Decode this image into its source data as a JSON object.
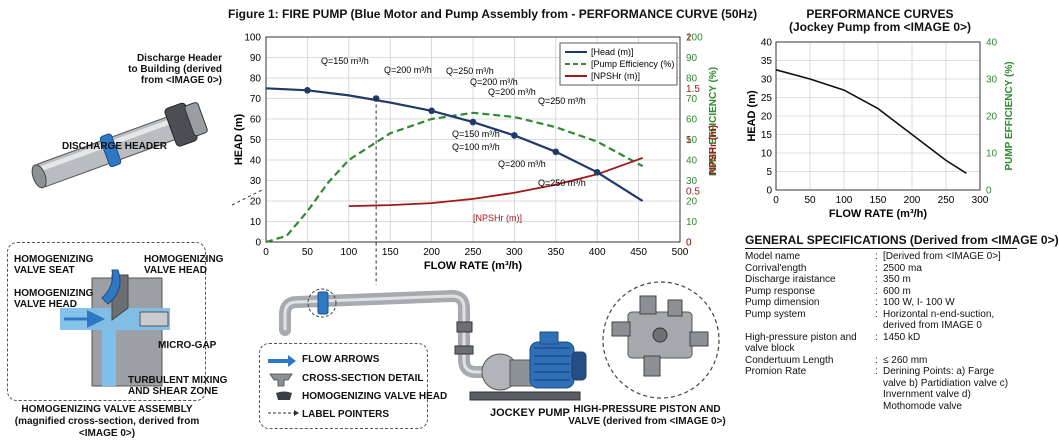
{
  "main_title": "Figure 1: FIRE PUMP (Blue Motor and Pump Assembly from - PERFORMANCE CURVE (50Hz)",
  "right_title_1": "PERFORMANCE CURVES",
  "right_title_2": "(Jockey Pump from <IMAGE 0>)",
  "discharge_note": [
    "Discharge Header",
    "to Building (derived",
    "from <IMAGE 0>)"
  ],
  "discharge_header_label": "DISCHARGE HEADER",
  "hv_labels": {
    "seat": [
      "HOMOGENIZING",
      "VALVE SEAT"
    ],
    "head_top": [
      "HOMOGENIZING",
      "VALVE HEAD"
    ],
    "head_left": [
      "HOMOGENIZING",
      "VALVE HEAD"
    ],
    "microgap": "MICRO-GAP",
    "turbulent": [
      "TURBULENT MIXING",
      "AND SHEAR ZONE"
    ]
  },
  "hv_caption_1": "HOMOGENIZING VALVE ASSEMBLY",
  "hv_caption_2": "(magnified cross-section, derived from <IMAGE 0>)",
  "legend_items": [
    "FLOW ARROWS",
    "CROSS-SECTION DETAIL",
    "HOMOGENIZING VALVE HEAD",
    "LABEL POINTERS"
  ],
  "jockey_label": "JOCKEY PUMP",
  "piston_caption_1": "HIGH-PRESSURE PISTON AND",
  "piston_caption_2": "VALVE (derived from <IMAGE 0>)",
  "specs_title": "GENERAL SPECIFICATIONS (Derived from <IMAGE 0>)",
  "specs": [
    {
      "k": "Model name",
      "v": "[Derived from <IMAGE 0>]"
    },
    {
      "k": "Corrival'ength",
      "v": "2500 ma"
    },
    {
      "k": "Discharge iraistance",
      "v": "350 m"
    },
    {
      "k": "Pump response",
      "v": "600 m"
    },
    {
      "k": "Pump dimension",
      "v": "100 W, I- 100 W"
    },
    {
      "k": "Pump system",
      "v": "Horizontal n-end-suction, derived from IMAGE 0"
    },
    {
      "k": "High-pressure piston and valve block",
      "v": "1450 kD"
    },
    {
      "k": "Condertuum Length",
      "v": "≤ 260 mm"
    },
    {
      "k": "Promion Rate",
      "v": "Derining Points: a) Farge valve b) Partidiation valve c) Invernment valve d) Mothomode valve"
    }
  ],
  "chart_data": [
    {
      "type": "line",
      "xlabel": "FLOW RATE (m³/h)",
      "ylabel": "HEAD (m)",
      "y2label": "PUMP EFFICIENCY (%)",
      "y3label": "NPSHr (m)",
      "xlim": [
        0,
        500
      ],
      "ylim": [
        0,
        100
      ],
      "y2lim": [
        0,
        100
      ],
      "y3lim": [
        0,
        2
      ],
      "xticks": [
        0,
        50,
        100,
        150,
        200,
        250,
        300,
        350,
        400,
        450,
        500
      ],
      "yticks": [
        0,
        10,
        20,
        30,
        40,
        50,
        60,
        70,
        80,
        90,
        100
      ],
      "y3ticks": [
        "0",
        "0.5",
        "1",
        "1.5",
        "2"
      ],
      "legend": [
        "[Head (m)]",
        "[Pump Efficiency (%)",
        "[NPSHr (m)]"
      ],
      "series": [
        {
          "name": "[Head (m)]",
          "color": "#1f3a68",
          "x": [
            0,
            50,
            100,
            150,
            200,
            250,
            300,
            350,
            400,
            455
          ],
          "y": [
            75,
            74,
            71.5,
            68,
            64,
            58.5,
            52,
            44,
            34,
            20
          ]
        },
        {
          "name": "[Pump Efficiency (%)",
          "color": "#2e8b2e",
          "dash": true,
          "x": [
            0,
            25,
            50,
            75,
            100,
            150,
            200,
            250,
            300,
            350,
            400,
            455
          ],
          "y": [
            0,
            3,
            15,
            29,
            40,
            53,
            60,
            63,
            61,
            56,
            49,
            37
          ]
        },
        {
          "name": "[NPSHr (m)]",
          "color": "#a01818",
          "x": [
            100,
            150,
            200,
            250,
            300,
            350,
            400,
            455
          ],
          "y": [
            0.35,
            0.36,
            0.38,
            0.42,
            0.48,
            0.56,
            0.66,
            0.82
          ]
        }
      ],
      "annotations": [
        "Q=150 m³/h",
        "Q=200 m³/h",
        "Q=250 m³/h",
        "Q=200 m³/h",
        "Q=200 m³/h",
        "Q=250 m³/h",
        "Q=150 m³/h",
        "Q=100 m³/h",
        "Q=200 m³/h",
        "Q=250 m³/h",
        "[NPSHr (m)]"
      ]
    },
    {
      "type": "line",
      "xlabel": "FLOW RATE (m³/h)",
      "ylabel": "HEAD (m)",
      "y2label": "PUMP EFFICIENCY (%)",
      "xlim": [
        0,
        300
      ],
      "ylim": [
        0,
        40
      ],
      "xticks": [
        0,
        50,
        100,
        150,
        200,
        250,
        300
      ],
      "yticks": [
        0,
        5,
        10,
        15,
        20,
        25,
        30,
        35,
        40
      ],
      "y2ticks": [
        0,
        10,
        20,
        30,
        40
      ],
      "series": [
        {
          "name": "",
          "color": "#111111",
          "x": [
            0,
            50,
            100,
            150,
            200,
            250,
            280
          ],
          "y": [
            32.5,
            30,
            27,
            22,
            15,
            8,
            4.5
          ]
        }
      ]
    }
  ],
  "colors": {
    "blue": "#2f78c4",
    "green": "#2e8b2e",
    "red": "#a01818",
    "navy": "#1f3a68"
  }
}
